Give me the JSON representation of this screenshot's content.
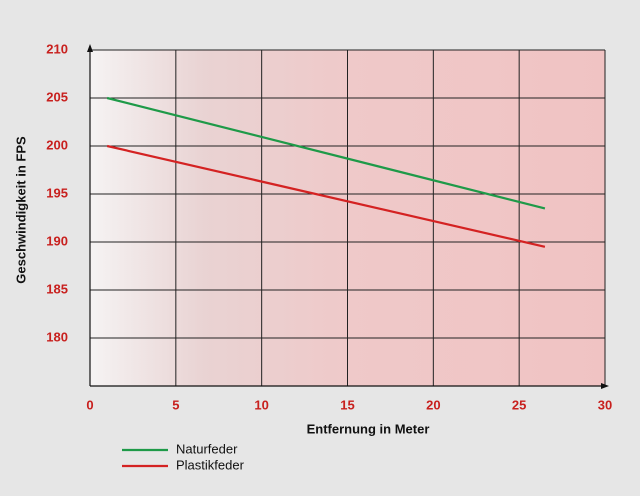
{
  "chart_data": {
    "type": "line",
    "xlabel": "Entfernung in Meter",
    "ylabel": "Geschwindigkeit in FPS",
    "x": [
      1,
      26.5
    ],
    "series": [
      {
        "name": "Naturfeder",
        "color": "#1e9a48",
        "values": [
          205,
          193.5
        ]
      },
      {
        "name": "Plastikfeder",
        "color": "#d42222",
        "values": [
          200,
          189.5
        ]
      }
    ],
    "xlim": [
      0,
      30
    ],
    "xticks": [
      0,
      5,
      10,
      15,
      20,
      25,
      30
    ],
    "ylim": [
      175,
      210
    ],
    "yticks": [
      180,
      185,
      190,
      195,
      200,
      205,
      210
    ],
    "grid": true
  }
}
